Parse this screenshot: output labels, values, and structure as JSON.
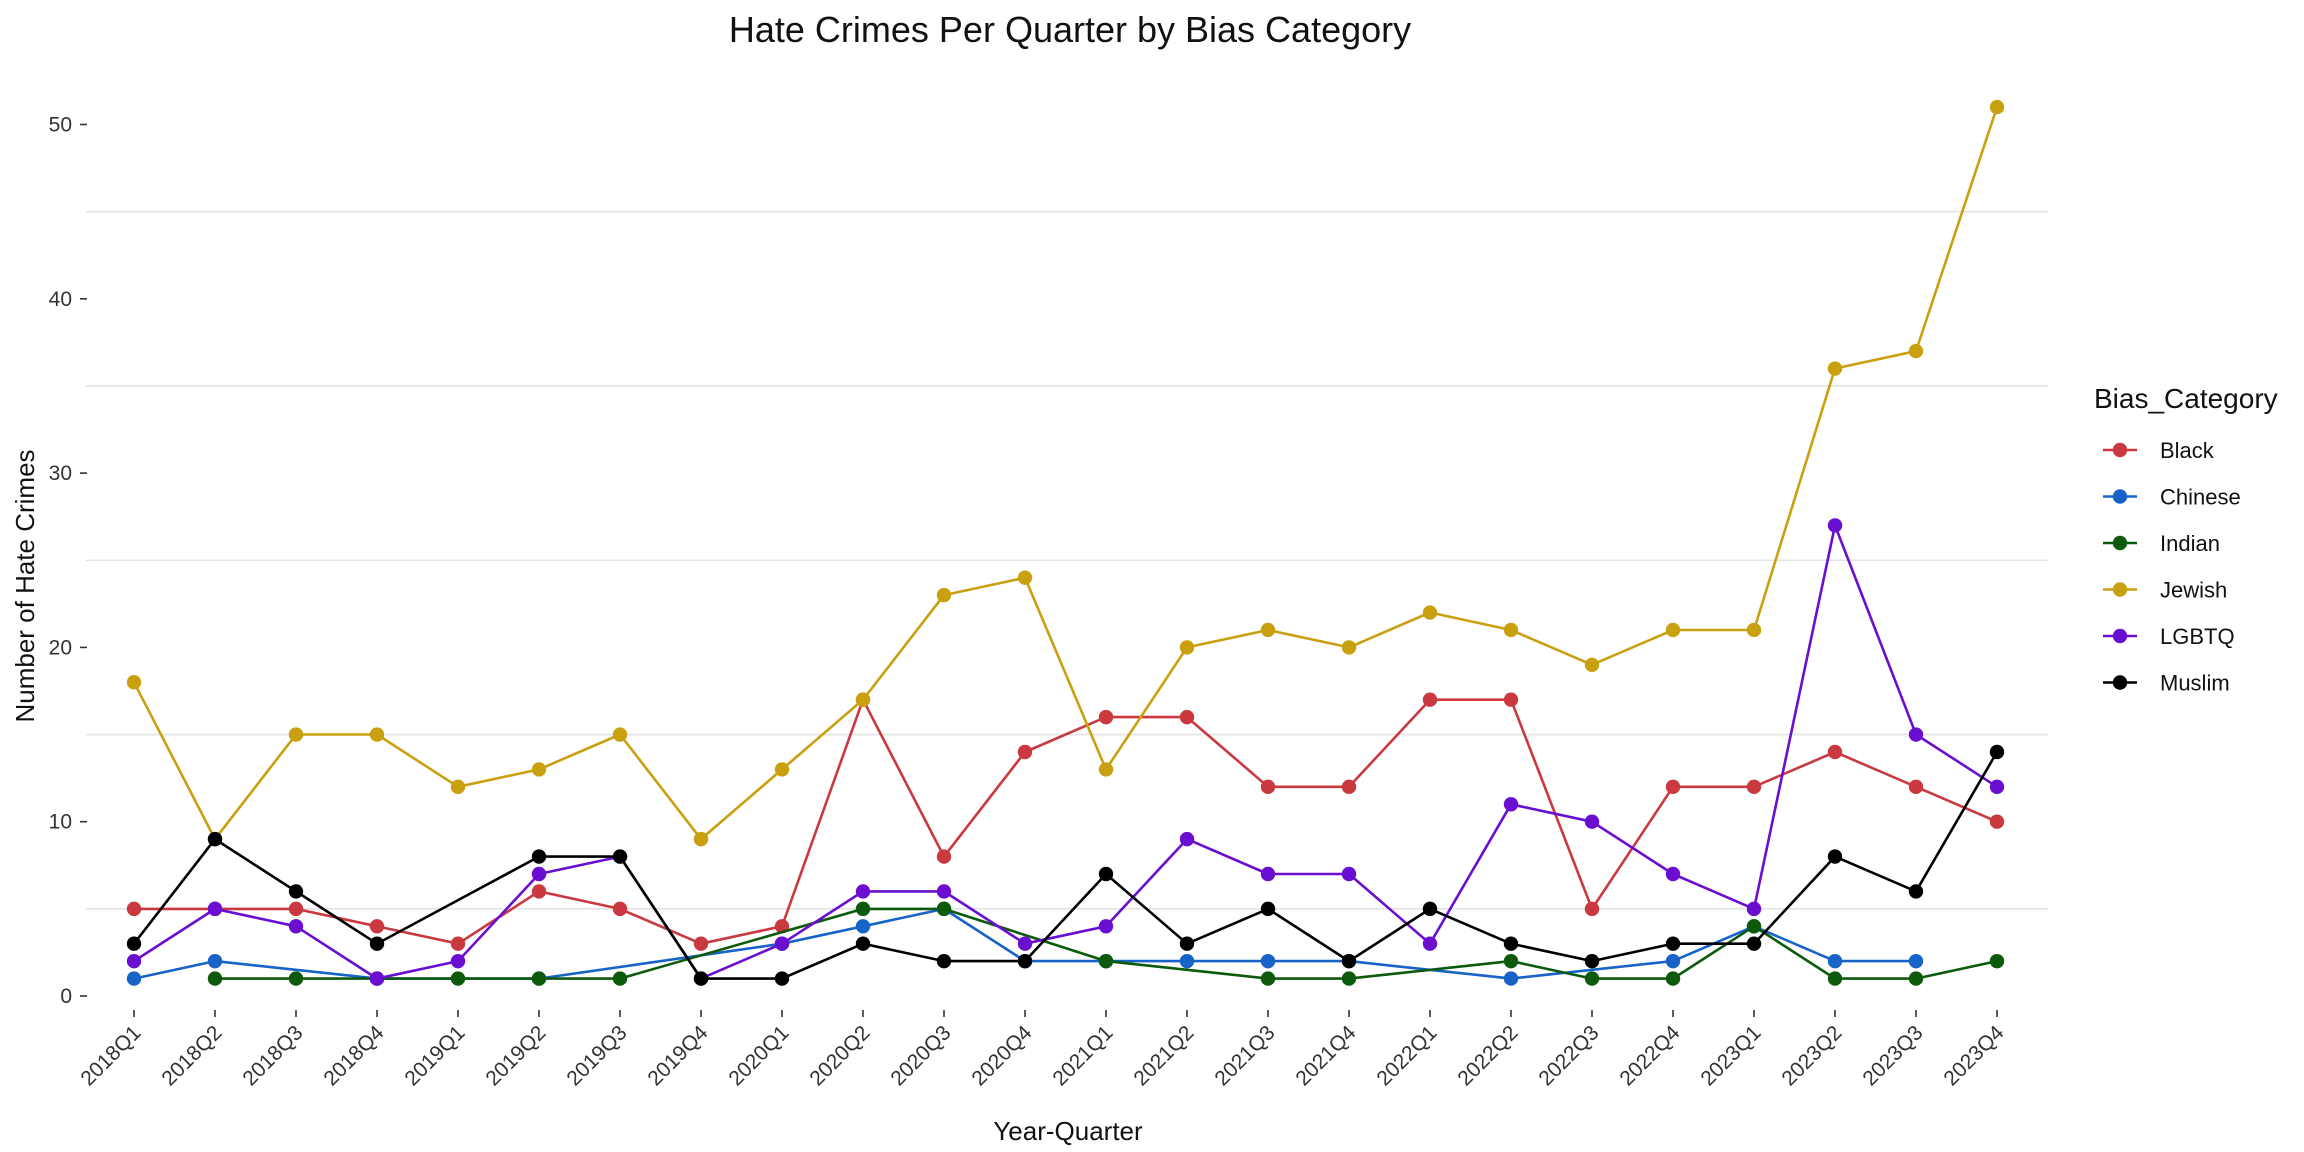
{
  "chart_data": {
    "type": "line",
    "title": "Hate Crimes Per Quarter by Bias Category",
    "xlabel": "Year-Quarter",
    "ylabel": "Number of Hate Crimes",
    "ylim": [
      0,
      52
    ],
    "yticks": [
      0,
      10,
      20,
      30,
      40,
      50
    ],
    "grid": true,
    "legend_title": "Bias_Category",
    "legend_position": "right",
    "categories": [
      "2018Q1",
      "2018Q2",
      "2018Q3",
      "2018Q4",
      "2019Q1",
      "2019Q2",
      "2019Q3",
      "2019Q4",
      "2020Q1",
      "2020Q2",
      "2020Q3",
      "2020Q4",
      "2021Q1",
      "2021Q2",
      "2021Q3",
      "2021Q4",
      "2022Q1",
      "2022Q2",
      "2022Q3",
      "2022Q4",
      "2023Q1",
      "2023Q2",
      "2023Q3",
      "2023Q4"
    ],
    "series": [
      {
        "name": "Black",
        "color": "#c9393f",
        "values": [
          5,
          5,
          5,
          4,
          3,
          6,
          5,
          3,
          4,
          17,
          8,
          14,
          16,
          16,
          12,
          12,
          17,
          17,
          5,
          12,
          12,
          14,
          12,
          10
        ]
      },
      {
        "name": "Chinese",
        "color": "#1763c7",
        "values": [
          1,
          2,
          null,
          1,
          null,
          1,
          null,
          null,
          3,
          4,
          5,
          2,
          2,
          2,
          2,
          2,
          null,
          1,
          null,
          2,
          4,
          2,
          2,
          null
        ]
      },
      {
        "name": "Indian",
        "color": "#0d5a0d",
        "values": [
          null,
          1,
          1,
          1,
          1,
          1,
          1,
          null,
          null,
          5,
          5,
          null,
          2,
          null,
          1,
          1,
          null,
          2,
          1,
          1,
          4,
          1,
          1,
          2
        ]
      },
      {
        "name": "Jewish",
        "color": "#c9a010",
        "values": [
          18,
          9,
          15,
          15,
          12,
          13,
          15,
          9,
          13,
          17,
          23,
          24,
          13,
          20,
          21,
          20,
          22,
          21,
          19,
          21,
          21,
          36,
          37,
          51
        ]
      },
      {
        "name": "LGBTQ",
        "color": "#6a0fcf",
        "values": [
          2,
          5,
          4,
          1,
          2,
          7,
          8,
          1,
          3,
          6,
          6,
          3,
          4,
          9,
          7,
          7,
          3,
          11,
          10,
          7,
          5,
          27,
          15,
          12
        ]
      },
      {
        "name": "Muslim",
        "color": "#000000",
        "values": [
          3,
          9,
          6,
          3,
          null,
          8,
          8,
          1,
          1,
          3,
          2,
          2,
          7,
          3,
          5,
          2,
          5,
          3,
          2,
          3,
          3,
          8,
          6,
          14
        ]
      }
    ]
  }
}
